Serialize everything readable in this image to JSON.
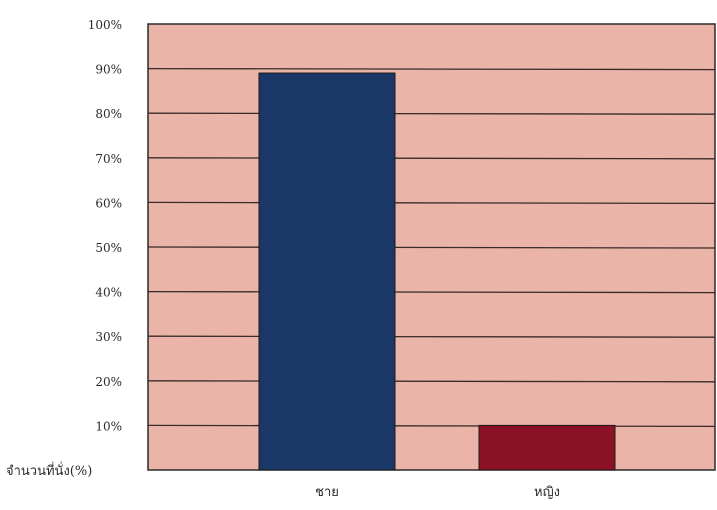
{
  "chart_data": {
    "type": "bar",
    "categories": [
      "ชาย",
      "หญิง"
    ],
    "values": [
      89,
      10
    ],
    "ylim": [
      0,
      100
    ],
    "yticks": [
      "10%",
      "20%",
      "30%",
      "40%",
      "50%",
      "60%",
      "70%",
      "80%",
      "90%",
      "100%"
    ],
    "ylabel": "จำนวนที่นั่ง(%)",
    "grid": true,
    "colors": {
      "plot_background": "#eab4a8",
      "grid": "#3a2a2a",
      "bars": [
        "#1b3767",
        "#8a1224"
      ]
    }
  }
}
